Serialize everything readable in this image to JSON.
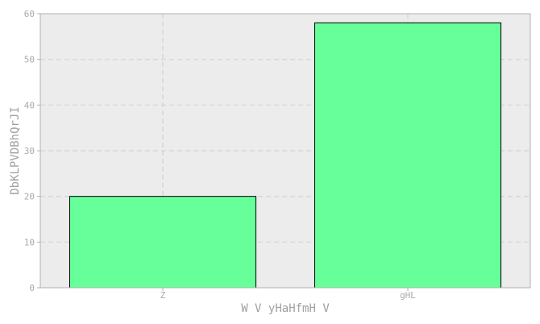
{
  "chart_data": {
    "type": "bar",
    "categories": [
      "Z",
      "gHL"
    ],
    "values": [
      20,
      58
    ],
    "xlabel": "W V yHaHfmH V",
    "ylabel": "DbKLPVDBhQrJI",
    "ylim": [
      0,
      60
    ],
    "yticks": [
      0,
      10,
      20,
      30,
      40,
      50,
      60
    ],
    "grid": true,
    "colors": {
      "bar_fill": "#66ff99",
      "bar_edge": "#000000",
      "plot_background": "#ececec",
      "grid": "#d2d2d2",
      "axis": "#b0b0b0"
    }
  }
}
